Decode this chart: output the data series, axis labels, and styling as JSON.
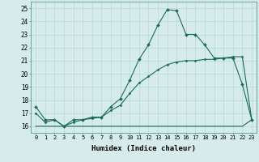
{
  "title": "",
  "xlabel": "Humidex (Indice chaleur)",
  "background_color": "#d6ecea",
  "grid_color": "#b8d8d4",
  "line_color": "#1a6b5a",
  "xlim": [
    -0.5,
    23.5
  ],
  "ylim": [
    15.5,
    25.5
  ],
  "xticks": [
    0,
    1,
    2,
    3,
    4,
    5,
    6,
    7,
    8,
    9,
    10,
    11,
    12,
    13,
    14,
    15,
    16,
    17,
    18,
    19,
    20,
    21,
    22,
    23
  ],
  "yticks": [
    16,
    17,
    18,
    19,
    20,
    21,
    22,
    23,
    24,
    25
  ],
  "series1_x": [
    0,
    1,
    2,
    3,
    4,
    5,
    6,
    7,
    8,
    9,
    10,
    11,
    12,
    13,
    14,
    15,
    16,
    17,
    18,
    19,
    20,
    21,
    22,
    23
  ],
  "series1_y": [
    17.5,
    16.5,
    16.5,
    16.0,
    16.5,
    16.5,
    16.7,
    16.7,
    17.5,
    18.1,
    19.5,
    21.1,
    22.2,
    23.7,
    24.9,
    24.8,
    23.0,
    23.0,
    22.2,
    21.2,
    21.2,
    21.2,
    19.2,
    16.5
  ],
  "series2_x": [
    0,
    1,
    2,
    3,
    4,
    5,
    6,
    7,
    8,
    9,
    10,
    11,
    12,
    13,
    14,
    15,
    16,
    17,
    18,
    19,
    20,
    21,
    22,
    23
  ],
  "series2_y": [
    16.0,
    16.0,
    16.0,
    16.0,
    16.0,
    16.0,
    16.0,
    16.0,
    16.0,
    16.0,
    16.0,
    16.0,
    16.0,
    16.0,
    16.0,
    16.0,
    16.0,
    16.0,
    16.0,
    16.0,
    16.0,
    16.0,
    16.0,
    16.5
  ],
  "series3_x": [
    0,
    1,
    2,
    3,
    4,
    5,
    6,
    7,
    8,
    9,
    10,
    11,
    12,
    13,
    14,
    15,
    16,
    17,
    18,
    19,
    20,
    21,
    22,
    23
  ],
  "series3_y": [
    17.0,
    16.3,
    16.5,
    16.0,
    16.3,
    16.5,
    16.6,
    16.7,
    17.2,
    17.6,
    18.5,
    19.3,
    19.8,
    20.3,
    20.7,
    20.9,
    21.0,
    21.0,
    21.1,
    21.1,
    21.2,
    21.3,
    21.3,
    16.5
  ]
}
